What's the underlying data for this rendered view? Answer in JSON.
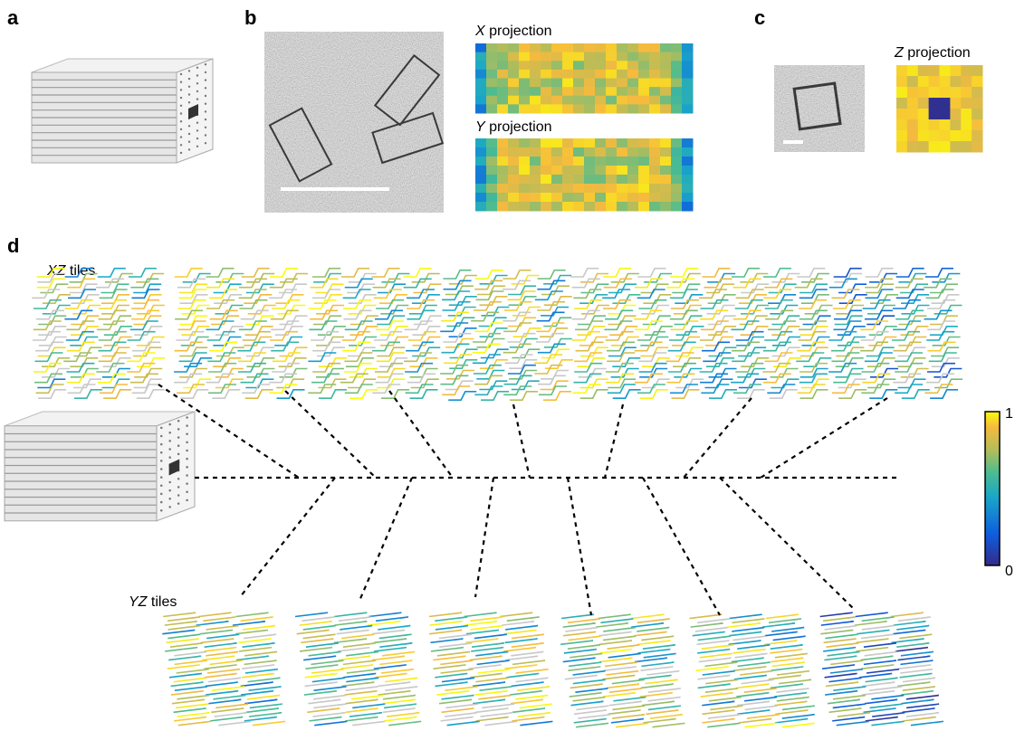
{
  "panels": {
    "a": {
      "label": "a"
    },
    "b": {
      "label": "b",
      "x_projection": {
        "axis": "X",
        "text": "projection"
      },
      "y_projection": {
        "axis": "Y",
        "text": "projection"
      }
    },
    "c": {
      "label": "c",
      "z_projection": {
        "axis": "Z",
        "text": "projection"
      }
    },
    "d": {
      "label": "d",
      "xz_tiles": {
        "axis": "XZ",
        "text": "tiles"
      },
      "yz_tiles": {
        "axis": "YZ",
        "text": "tiles"
      },
      "colorbar": {
        "max_label": "1",
        "min_label": "0"
      }
    }
  }
}
